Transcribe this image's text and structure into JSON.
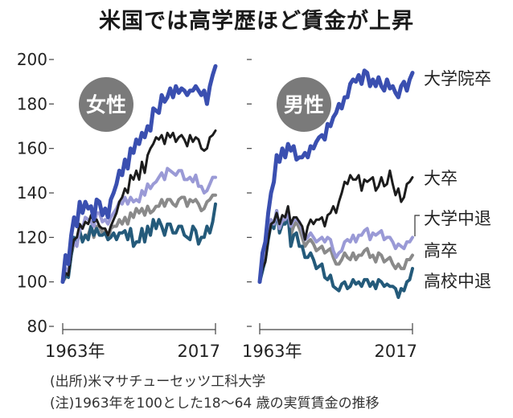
{
  "title": "米国では高学歴ほど賃金が上昇",
  "source": "(出所)米マサチューセッツ工科大学",
  "footnote": "(注)1963年を100とした18～64 歳の実質賃金の推移",
  "colors": {
    "college_plus": "#3a4fb0",
    "college": "#1c1c1c",
    "some_college": "#9a9ad6",
    "high_school": "#8a8a8a",
    "hs_dropout": "#245a7a",
    "badge": "#7a7a7a"
  },
  "chart_data": [
    {
      "type": "line",
      "panel_label": "女性",
      "ylim": [
        80,
        200
      ],
      "yticks": [
        80,
        100,
        120,
        140,
        160,
        180,
        200
      ],
      "x": [
        1963,
        1964,
        1965,
        1966,
        1967,
        1968,
        1969,
        1970,
        1971,
        1972,
        1973,
        1974,
        1975,
        1976,
        1977,
        1978,
        1979,
        1980,
        1981,
        1982,
        1983,
        1984,
        1985,
        1986,
        1987,
        1988,
        1989,
        1990,
        1991,
        1992,
        1993,
        1994,
        1995,
        1996,
        1997,
        1998,
        1999,
        2000,
        2001,
        2002,
        2003,
        2004,
        2005,
        2006,
        2007,
        2008,
        2009,
        2010,
        2011,
        2012,
        2013,
        2014,
        2015,
        2016,
        2017
      ],
      "x_tick_labels": [
        "1963年",
        "2017"
      ],
      "series": [
        {
          "key": "college_plus",
          "values": [
            100,
            112,
            108,
            121,
            129,
            125,
            136,
            131,
            136,
            133,
            134,
            128,
            137,
            136,
            130,
            133,
            129,
            137,
            140,
            144,
            150,
            148,
            155,
            151,
            160,
            158,
            164,
            162,
            167,
            165,
            170,
            168,
            178,
            177,
            176,
            184,
            181,
            183,
            187,
            183,
            188,
            185,
            187,
            186,
            184,
            186,
            186,
            188,
            186,
            184,
            186,
            180,
            188,
            193,
            197
          ]
        },
        {
          "key": "college",
          "values": [
            100,
            104,
            103,
            113,
            119,
            120,
            126,
            124,
            127,
            126,
            130,
            127,
            128,
            125,
            124,
            124,
            121,
            125,
            128,
            131,
            136,
            138,
            142,
            140,
            148,
            146,
            150,
            146,
            154,
            149,
            157,
            160,
            162,
            165,
            164,
            166,
            162,
            167,
            165,
            167,
            163,
            165,
            166,
            164,
            161,
            166,
            163,
            165,
            164,
            160,
            159,
            160,
            165,
            166,
            168
          ]
        },
        {
          "key": "some_college",
          "values": [
            100,
            106,
            105,
            114,
            118,
            116,
            124,
            124,
            129,
            128,
            127,
            125,
            131,
            131,
            127,
            128,
            126,
            129,
            131,
            133,
            136,
            135,
            138,
            135,
            138,
            136,
            137,
            136,
            141,
            139,
            144,
            142,
            144,
            145,
            147,
            149,
            146,
            151,
            150,
            149,
            148,
            150,
            150,
            146,
            146,
            147,
            145,
            148,
            143,
            143,
            140,
            141,
            144,
            147,
            147
          ]
        },
        {
          "key": "high_school",
          "values": [
            100,
            102,
            104,
            112,
            118,
            117,
            122,
            119,
            121,
            121,
            125,
            120,
            125,
            125,
            122,
            123,
            119,
            124,
            125,
            125,
            128,
            126,
            129,
            126,
            131,
            129,
            133,
            131,
            133,
            130,
            134,
            131,
            132,
            134,
            134,
            137,
            134,
            137,
            137,
            135,
            134,
            137,
            138,
            138,
            134,
            137,
            136,
            137,
            135,
            132,
            133,
            136,
            137,
            139,
            139
          ]
        },
        {
          "key": "hs_dropout",
          "values": [
            100,
            103,
            102,
            112,
            120,
            117,
            123,
            118,
            121,
            119,
            125,
            121,
            124,
            121,
            121,
            122,
            119,
            120,
            122,
            119,
            122,
            122,
            123,
            119,
            124,
            116,
            118,
            118,
            124,
            118,
            125,
            121,
            128,
            124,
            128,
            125,
            121,
            126,
            126,
            122,
            122,
            125,
            125,
            121,
            120,
            119,
            125,
            123,
            117,
            120,
            120,
            125,
            122,
            127,
            135
          ]
        }
      ]
    },
    {
      "type": "line",
      "panel_label": "男性",
      "ylim": [
        80,
        200
      ],
      "yticks": [
        80,
        100,
        120,
        140,
        160,
        180,
        200
      ],
      "x": [
        1963,
        1964,
        1965,
        1966,
        1967,
        1968,
        1969,
        1970,
        1971,
        1972,
        1973,
        1974,
        1975,
        1976,
        1977,
        1978,
        1979,
        1980,
        1981,
        1982,
        1983,
        1984,
        1985,
        1986,
        1987,
        1988,
        1989,
        1990,
        1991,
        1992,
        1993,
        1994,
        1995,
        1996,
        1997,
        1998,
        1999,
        2000,
        2001,
        2002,
        2003,
        2004,
        2005,
        2006,
        2007,
        2008,
        2009,
        2010,
        2011,
        2012,
        2013,
        2014,
        2015,
        2016,
        2017
      ],
      "x_tick_labels": [
        "1963年",
        "2017"
      ],
      "series": [
        {
          "key": "college_plus",
          "name": "大学院卒",
          "values": [
            100,
            113,
            118,
            131,
            140,
            145,
            157,
            154,
            160,
            156,
            162,
            159,
            161,
            155,
            156,
            156,
            158,
            156,
            161,
            160,
            163,
            165,
            166,
            164,
            171,
            170,
            174,
            176,
            180,
            178,
            183,
            183,
            189,
            191,
            190,
            193,
            189,
            195,
            194,
            188,
            191,
            188,
            192,
            188,
            186,
            191,
            187,
            188,
            185,
            183,
            188,
            190,
            186,
            191,
            194
          ]
        },
        {
          "key": "college",
          "name": "大卒",
          "values": [
            100,
            106,
            109,
            119,
            126,
            127,
            131,
            126,
            130,
            129,
            134,
            126,
            129,
            129,
            127,
            125,
            119,
            125,
            128,
            126,
            128,
            128,
            129,
            125,
            130,
            131,
            134,
            131,
            136,
            140,
            145,
            144,
            148,
            146,
            146,
            148,
            141,
            146,
            145,
            146,
            147,
            141,
            143,
            147,
            143,
            144,
            150,
            144,
            139,
            142,
            136,
            138,
            144,
            145,
            147
          ]
        },
        {
          "key": "some_college",
          "name": "大学中退",
          "values": [
            100,
            110,
            114,
            125,
            128,
            126,
            132,
            124,
            128,
            128,
            131,
            125,
            128,
            128,
            127,
            124,
            119,
            120,
            122,
            120,
            118,
            119,
            120,
            118,
            120,
            119,
            114,
            111,
            113,
            114,
            118,
            119,
            118,
            121,
            118,
            121,
            121,
            123,
            124,
            119,
            122,
            121,
            122,
            123,
            119,
            120,
            120,
            118,
            115,
            117,
            116,
            115,
            118,
            118,
            120
          ]
        },
        {
          "key": "high_school",
          "name": "高卒",
          "values": [
            100,
            108,
            112,
            124,
            127,
            125,
            131,
            123,
            127,
            128,
            130,
            121,
            125,
            127,
            124,
            120,
            116,
            118,
            119,
            117,
            114,
            115,
            116,
            113,
            114,
            115,
            111,
            108,
            108,
            110,
            113,
            111,
            110,
            113,
            110,
            112,
            112,
            114,
            115,
            111,
            112,
            109,
            113,
            112,
            109,
            110,
            111,
            108,
            106,
            108,
            106,
            106,
            110,
            110,
            112
          ]
        },
        {
          "key": "hs_dropout",
          "name": "高校中退",
          "values": [
            100,
            105,
            110,
            119,
            126,
            124,
            132,
            122,
            126,
            126,
            130,
            116,
            121,
            122,
            116,
            116,
            111,
            111,
            113,
            110,
            106,
            107,
            108,
            102,
            101,
            103,
            98,
            97,
            96,
            99,
            100,
            97,
            98,
            101,
            99,
            100,
            98,
            101,
            101,
            98,
            100,
            97,
            101,
            100,
            98,
            99,
            98,
            98,
            97,
            93,
            97,
            96,
            100,
            101,
            106
          ]
        }
      ]
    }
  ]
}
